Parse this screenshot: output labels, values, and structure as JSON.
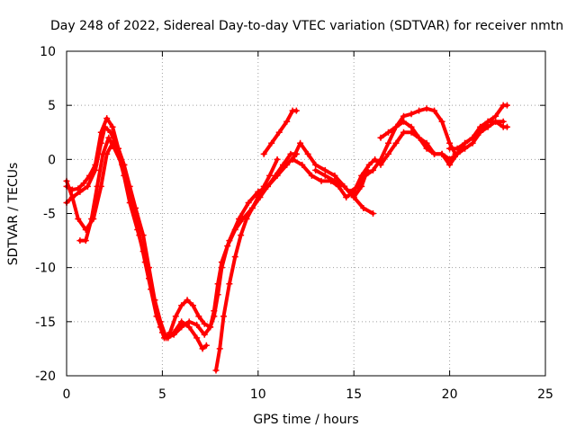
{
  "chart_data": {
    "type": "scatter",
    "title": "Day 248 of 2022, Sidereal Day-to-day VTEC variation (SDTVAR) for receiver nmtn",
    "xlabel": "GPS time / hours",
    "ylabel": "SDTVAR / TECUs",
    "xlim": [
      0,
      25
    ],
    "ylim": [
      -20,
      10
    ],
    "x_ticks": [
      "0",
      "5",
      "10",
      "15",
      "20",
      "25"
    ],
    "y_ticks": [
      "10",
      "5",
      "0",
      "-5",
      "-10",
      "-15",
      "-20"
    ],
    "grid": true,
    "marker": "plus",
    "color": "#ff0000",
    "series": [
      {
        "x": [
          0.0,
          0.3,
          0.7,
          1.1,
          1.5,
          1.8,
          2.0,
          2.3,
          2.7,
          3.0,
          3.3,
          3.6,
          4.0,
          4.3,
          4.6,
          4.9,
          5.1,
          5.4,
          5.7,
          6.0,
          6.3,
          6.6,
          6.9,
          7.2,
          7.5,
          7.7,
          7.9,
          8.1,
          8.4,
          8.8,
          9.2,
          9.7,
          10.1,
          10.5,
          10.9,
          11.3,
          11.7,
          12.0
        ],
        "y": [
          -4.0,
          -3.5,
          -3.0,
          -2.5,
          -1.0,
          1.5,
          3.0,
          2.5,
          1.0,
          -0.5,
          -2.5,
          -4.5,
          -7.0,
          -10.0,
          -13.0,
          -15.5,
          -16.5,
          -16.0,
          -14.5,
          -13.5,
          -13.0,
          -13.5,
          -14.5,
          -15.2,
          -15.5,
          -14.5,
          -12.5,
          -10.0,
          -8.0,
          -6.5,
          -5.5,
          -4.5,
          -3.5,
          -2.5,
          -1.5,
          -0.5,
          0.5,
          0.5
        ]
      },
      {
        "x": [
          0.0,
          0.3,
          0.6,
          1.0,
          1.4,
          1.8,
          2.1,
          2.4,
          2.7,
          3.0,
          3.3,
          3.7,
          4.0,
          4.3,
          4.6,
          4.9,
          5.2,
          5.6,
          6.0,
          6.4,
          6.8,
          7.2,
          7.5,
          7.7,
          7.9,
          8.1,
          8.5,
          9.0,
          9.5,
          10.0,
          10.5,
          11.0,
          11.5,
          12.0
        ],
        "y": [
          -2.0,
          -3.5,
          -5.5,
          -6.5,
          -5.5,
          -2.5,
          0.5,
          1.5,
          0.5,
          -1.5,
          -4.0,
          -6.5,
          -8.5,
          -11.0,
          -13.0,
          -15.0,
          -16.5,
          -16.2,
          -15.5,
          -15.0,
          -15.3,
          -16.2,
          -15.5,
          -14.0,
          -11.5,
          -9.5,
          -7.5,
          -5.5,
          -4.0,
          -3.0,
          -2.5,
          -1.5,
          -0.5,
          0.5
        ]
      },
      {
        "x": [
          0.7,
          1.0,
          1.3,
          1.6,
          1.9,
          2.2,
          2.5,
          2.9,
          3.2,
          3.5,
          3.8,
          4.1,
          4.4,
          4.7,
          5.0,
          5.3,
          5.6,
          6.0,
          6.4,
          6.8,
          7.1,
          7.3
        ],
        "y": [
          -7.5,
          -7.5,
          -5.5,
          -2.5,
          0.5,
          2.0,
          1.0,
          -0.5,
          -2.5,
          -4.5,
          -7.0,
          -9.5,
          -12.0,
          -14.5,
          -16.0,
          -16.5,
          -16.0,
          -15.0,
          -15.5,
          -16.5,
          -17.5,
          -17.2
        ]
      },
      {
        "x": [
          0.0,
          0.3,
          0.6,
          0.9,
          1.2,
          1.5,
          1.8,
          2.1,
          2.4,
          2.7,
          3.0
        ],
        "y": [
          -2.5,
          -2.8,
          -2.7,
          -2.2,
          -1.5,
          -0.5,
          2.5,
          3.8,
          3.0,
          1.0,
          -0.5
        ]
      },
      {
        "x": [
          7.8,
          8.0,
          8.2,
          8.5,
          8.8,
          9.1,
          9.4,
          9.7,
          10.0,
          10.3,
          10.6,
          11.0
        ],
        "y": [
          -19.5,
          -17.5,
          -14.5,
          -11.5,
          -9.0,
          -7.0,
          -5.5,
          -4.5,
          -3.5,
          -2.5,
          -1.5,
          0.0
        ]
      },
      {
        "x": [
          10.3,
          10.7,
          11.1,
          11.5,
          11.8,
          12.0
        ],
        "y": [
          0.5,
          1.5,
          2.5,
          3.5,
          4.5,
          4.5
        ]
      },
      {
        "x": [
          11.8,
          12.2,
          12.6,
          13.0,
          13.5,
          14.0,
          14.5,
          15.0,
          15.4,
          15.7
        ],
        "y": [
          0.0,
          1.5,
          0.5,
          -0.5,
          -1.0,
          -1.5,
          -2.5,
          -3.5,
          -2.5,
          -1.0
        ]
      },
      {
        "x": [
          11.8,
          12.3,
          12.8,
          13.3,
          13.8,
          14.2,
          14.6,
          15.0,
          15.4,
          15.8,
          16.1,
          16.4,
          16.8,
          17.2,
          17.6,
          18.0,
          18.4,
          18.8,
          19.2,
          19.6,
          20.0
        ],
        "y": [
          0.0,
          -0.5,
          -1.5,
          -2.0,
          -2.0,
          -2.5,
          -3.5,
          -3.0,
          -1.5,
          -0.5,
          0.0,
          -0.5,
          0.5,
          1.5,
          2.5,
          2.5,
          2.0,
          1.5,
          0.5,
          0.5,
          0.0
        ]
      },
      {
        "x": [
          13.0,
          13.5,
          14.0,
          14.5,
          15.0,
          15.5,
          16.0
        ],
        "y": [
          -1.0,
          -1.5,
          -2.0,
          -2.5,
          -3.5,
          -4.5,
          -5.0
        ]
      },
      {
        "x": [
          14.8,
          15.2,
          15.6,
          16.0,
          16.4,
          16.8,
          17.2,
          17.6,
          18.0,
          18.4,
          18.8,
          19.2,
          19.6,
          20.0,
          20.3
        ],
        "y": [
          -3.0,
          -2.5,
          -1.5,
          -1.0,
          0.0,
          1.5,
          3.0,
          4.0,
          4.2,
          4.5,
          4.7,
          4.5,
          3.5,
          1.5,
          0.5
        ]
      },
      {
        "x": [
          16.4,
          16.8,
          17.2,
          17.6,
          18.0,
          18.4,
          18.8,
          19.2,
          19.6,
          20.0,
          20.4,
          20.8,
          21.2,
          21.6,
          22.0,
          22.4,
          22.8
        ],
        "y": [
          2.0,
          2.5,
          3.0,
          3.5,
          3.0,
          2.0,
          1.0,
          0.5,
          0.5,
          -0.5,
          0.5,
          1.5,
          2.0,
          2.5,
          3.0,
          3.5,
          3.5
        ]
      },
      {
        "x": [
          19.6,
          20.0,
          20.4,
          20.8,
          21.2,
          21.6,
          22.0,
          22.4,
          22.8,
          23.0
        ],
        "y": [
          0.5,
          0.0,
          0.5,
          1.0,
          1.5,
          2.5,
          3.5,
          4.0,
          5.0,
          5.0
        ]
      },
      {
        "x": [
          20.0,
          20.4,
          20.8,
          21.2,
          21.6,
          22.0,
          22.4,
          22.8,
          23.0
        ],
        "y": [
          1.0,
          1.0,
          1.5,
          2.0,
          3.0,
          3.5,
          3.5,
          3.0,
          3.0
        ]
      }
    ]
  }
}
